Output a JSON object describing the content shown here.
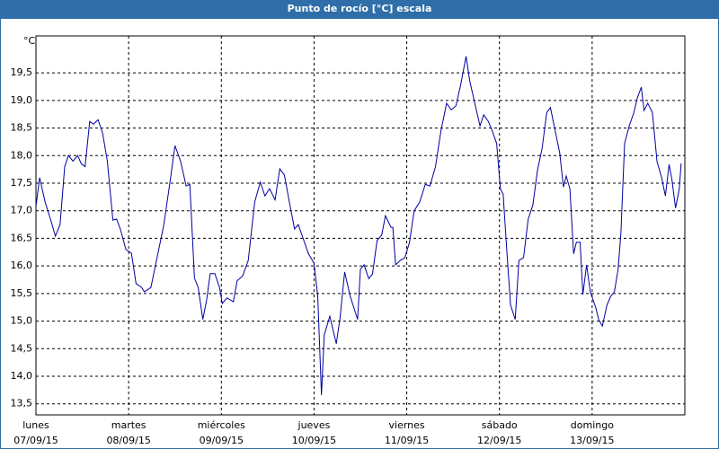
{
  "chart_data": {
    "type": "line",
    "title": "Punto de rocío [°C] escala",
    "y_label": "°C",
    "color": "#0000a0",
    "grid": true,
    "xlim": [
      0,
      7
    ],
    "ylim": [
      13.3,
      20.17
    ],
    "xticks": [
      {
        "value": 0,
        "label": "lunes",
        "date": "07/09/15"
      },
      {
        "value": 1,
        "label": "martes",
        "date": "08/09/15"
      },
      {
        "value": 2,
        "label": "miércoles",
        "date": "09/09/15"
      },
      {
        "value": 3,
        "label": "jueves",
        "date": "10/09/15"
      },
      {
        "value": 4,
        "label": "viernes",
        "date": "11/09/15"
      },
      {
        "value": 5,
        "label": "sábado",
        "date": "12/09/15"
      },
      {
        "value": 6,
        "label": "domingo",
        "date": "13/09/15"
      }
    ],
    "yticks": [
      {
        "value": 13.5,
        "label": "13,5"
      },
      {
        "value": 14,
        "label": "14,0"
      },
      {
        "value": 14.5,
        "label": "14,5"
      },
      {
        "value": 15,
        "label": "15,0"
      },
      {
        "value": 15.5,
        "label": "15,5"
      },
      {
        "value": 16,
        "label": "16,0"
      },
      {
        "value": 16.5,
        "label": "16,5"
      },
      {
        "value": 17,
        "label": "17,0"
      },
      {
        "value": 17.5,
        "label": "17,5"
      },
      {
        "value": 18,
        "label": "18,0"
      },
      {
        "value": 18.5,
        "label": "18,5"
      },
      {
        "value": 19,
        "label": "19,0"
      },
      {
        "value": 19.5,
        "label": "19,5"
      }
    ],
    "x": [
      0,
      0.04,
      0.1,
      0.16,
      0.21,
      0.26,
      0.31,
      0.35,
      0.4,
      0.45,
      0.49,
      0.53,
      0.58,
      0.62,
      0.67,
      0.72,
      0.77,
      0.83,
      0.87,
      0.91,
      0.97,
      1.03,
      1.08,
      1.14,
      1.17,
      1.24,
      1.32,
      1.38,
      1.45,
      1.5,
      1.56,
      1.62,
      1.66,
      1.71,
      1.75,
      1.8,
      1.84,
      1.88,
      1.93,
      1.98,
      2.01,
      2.06,
      2.13,
      2.17,
      2.23,
      2.29,
      2.36,
      2.42,
      2.47,
      2.52,
      2.58,
      2.63,
      2.68,
      2.74,
      2.79,
      2.83,
      2.89,
      2.94,
      3.0,
      3.04,
      3.08,
      3.11,
      3.17,
      3.24,
      3.28,
      3.33,
      3.39,
      3.47,
      3.5,
      3.54,
      3.59,
      3.63,
      3.68,
      3.73,
      3.77,
      3.83,
      3.85,
      3.88,
      3.93,
      3.98,
      4.03,
      4.08,
      4.14,
      4.2,
      4.25,
      4.31,
      4.37,
      4.43,
      4.48,
      4.53,
      4.58,
      4.64,
      4.68,
      4.73,
      4.79,
      4.83,
      4.88,
      4.92,
      4.97,
      5.01,
      5.04,
      5.08,
      5.12,
      5.17,
      5.21,
      5.26,
      5.31,
      5.36,
      5.41,
      5.46,
      5.51,
      5.55,
      5.6,
      5.65,
      5.69,
      5.72,
      5.76,
      5.8,
      5.83,
      5.87,
      5.9,
      5.94,
      5.98,
      6.04,
      6.07,
      6.11,
      6.16,
      6.2,
      6.24,
      6.28,
      6.31,
      6.35,
      6.4,
      6.45,
      6.49,
      6.53,
      6.56,
      6.6,
      6.65,
      6.7,
      6.75,
      6.79,
      6.83,
      6.86,
      6.9,
      6.94,
      6.96
    ],
    "values": [
      17.08,
      17.6,
      17.15,
      16.83,
      16.54,
      16.75,
      17.8,
      18.0,
      17.9,
      18.0,
      17.85,
      17.8,
      18.62,
      18.57,
      18.65,
      18.4,
      17.9,
      16.83,
      16.85,
      16.67,
      16.3,
      16.23,
      15.68,
      15.61,
      15.53,
      15.61,
      16.26,
      16.75,
      17.57,
      18.18,
      17.9,
      17.45,
      17.48,
      15.78,
      15.61,
      15.03,
      15.37,
      15.86,
      15.86,
      15.61,
      15.32,
      15.42,
      15.35,
      15.73,
      15.82,
      16.1,
      17.16,
      17.52,
      17.27,
      17.4,
      17.2,
      17.76,
      17.65,
      17.1,
      16.67,
      16.75,
      16.46,
      16.22,
      16.05,
      15.45,
      13.66,
      14.75,
      15.09,
      14.59,
      15.05,
      15.89,
      15.45,
      15.03,
      15.94,
      16.02,
      15.77,
      15.85,
      16.46,
      16.56,
      16.91,
      16.7,
      16.7,
      16.02,
      16.1,
      16.15,
      16.43,
      17.0,
      17.16,
      17.48,
      17.45,
      17.8,
      18.46,
      18.95,
      18.83,
      18.9,
      19.27,
      19.8,
      19.35,
      18.98,
      18.54,
      18.74,
      18.62,
      18.46,
      18.22,
      17.4,
      17.3,
      16.26,
      15.29,
      15.03,
      16.1,
      16.15,
      16.85,
      17.1,
      17.73,
      18.13,
      18.78,
      18.87,
      18.46,
      18.05,
      17.43,
      17.63,
      17.4,
      16.22,
      16.43,
      16.43,
      15.48,
      16.02,
      15.53,
      15.24,
      15.03,
      14.91,
      15.29,
      15.45,
      15.53,
      15.94,
      16.59,
      18.22,
      18.54,
      18.78,
      19.06,
      19.24,
      18.82,
      18.95,
      18.78,
      17.89,
      17.6,
      17.27,
      17.84,
      17.57,
      17.05,
      17.4,
      17.86
    ]
  }
}
